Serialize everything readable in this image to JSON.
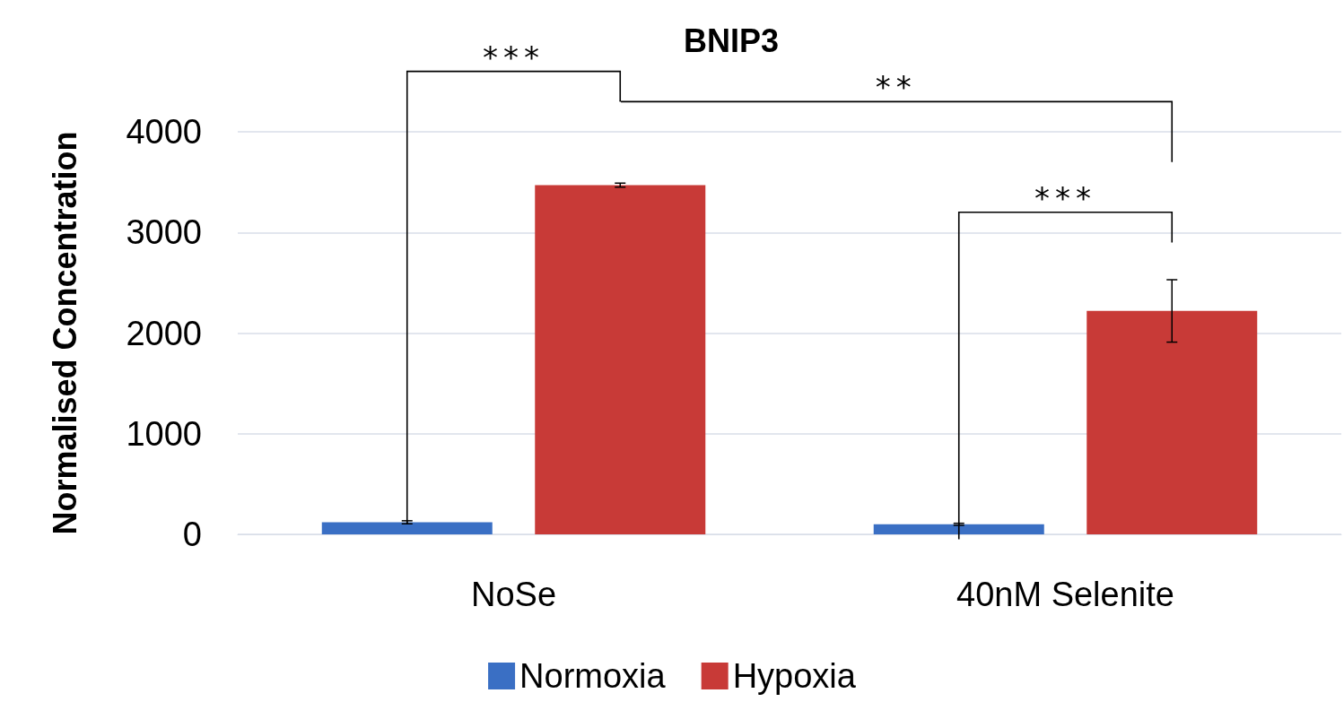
{
  "chart_data": {
    "type": "bar",
    "title": "BNIP3",
    "ylabel": "Normalised Concentration",
    "categories": [
      "NoSe",
      "40nM Selenite"
    ],
    "series": [
      {
        "name": "Normoxia",
        "color": "#3a6fc4",
        "values": [
          120,
          100
        ],
        "errors": [
          15,
          10
        ]
      },
      {
        "name": "Hypoxia",
        "color": "#c83a37",
        "values": [
          3470,
          2220
        ],
        "errors": [
          20,
          310
        ]
      }
    ],
    "ylim": [
      0,
      4000
    ],
    "yticks": [
      0,
      1000,
      2000,
      3000,
      4000
    ],
    "grid": "y",
    "legend": "bottom",
    "annotations": [
      "***",
      "**",
      "***"
    ]
  }
}
